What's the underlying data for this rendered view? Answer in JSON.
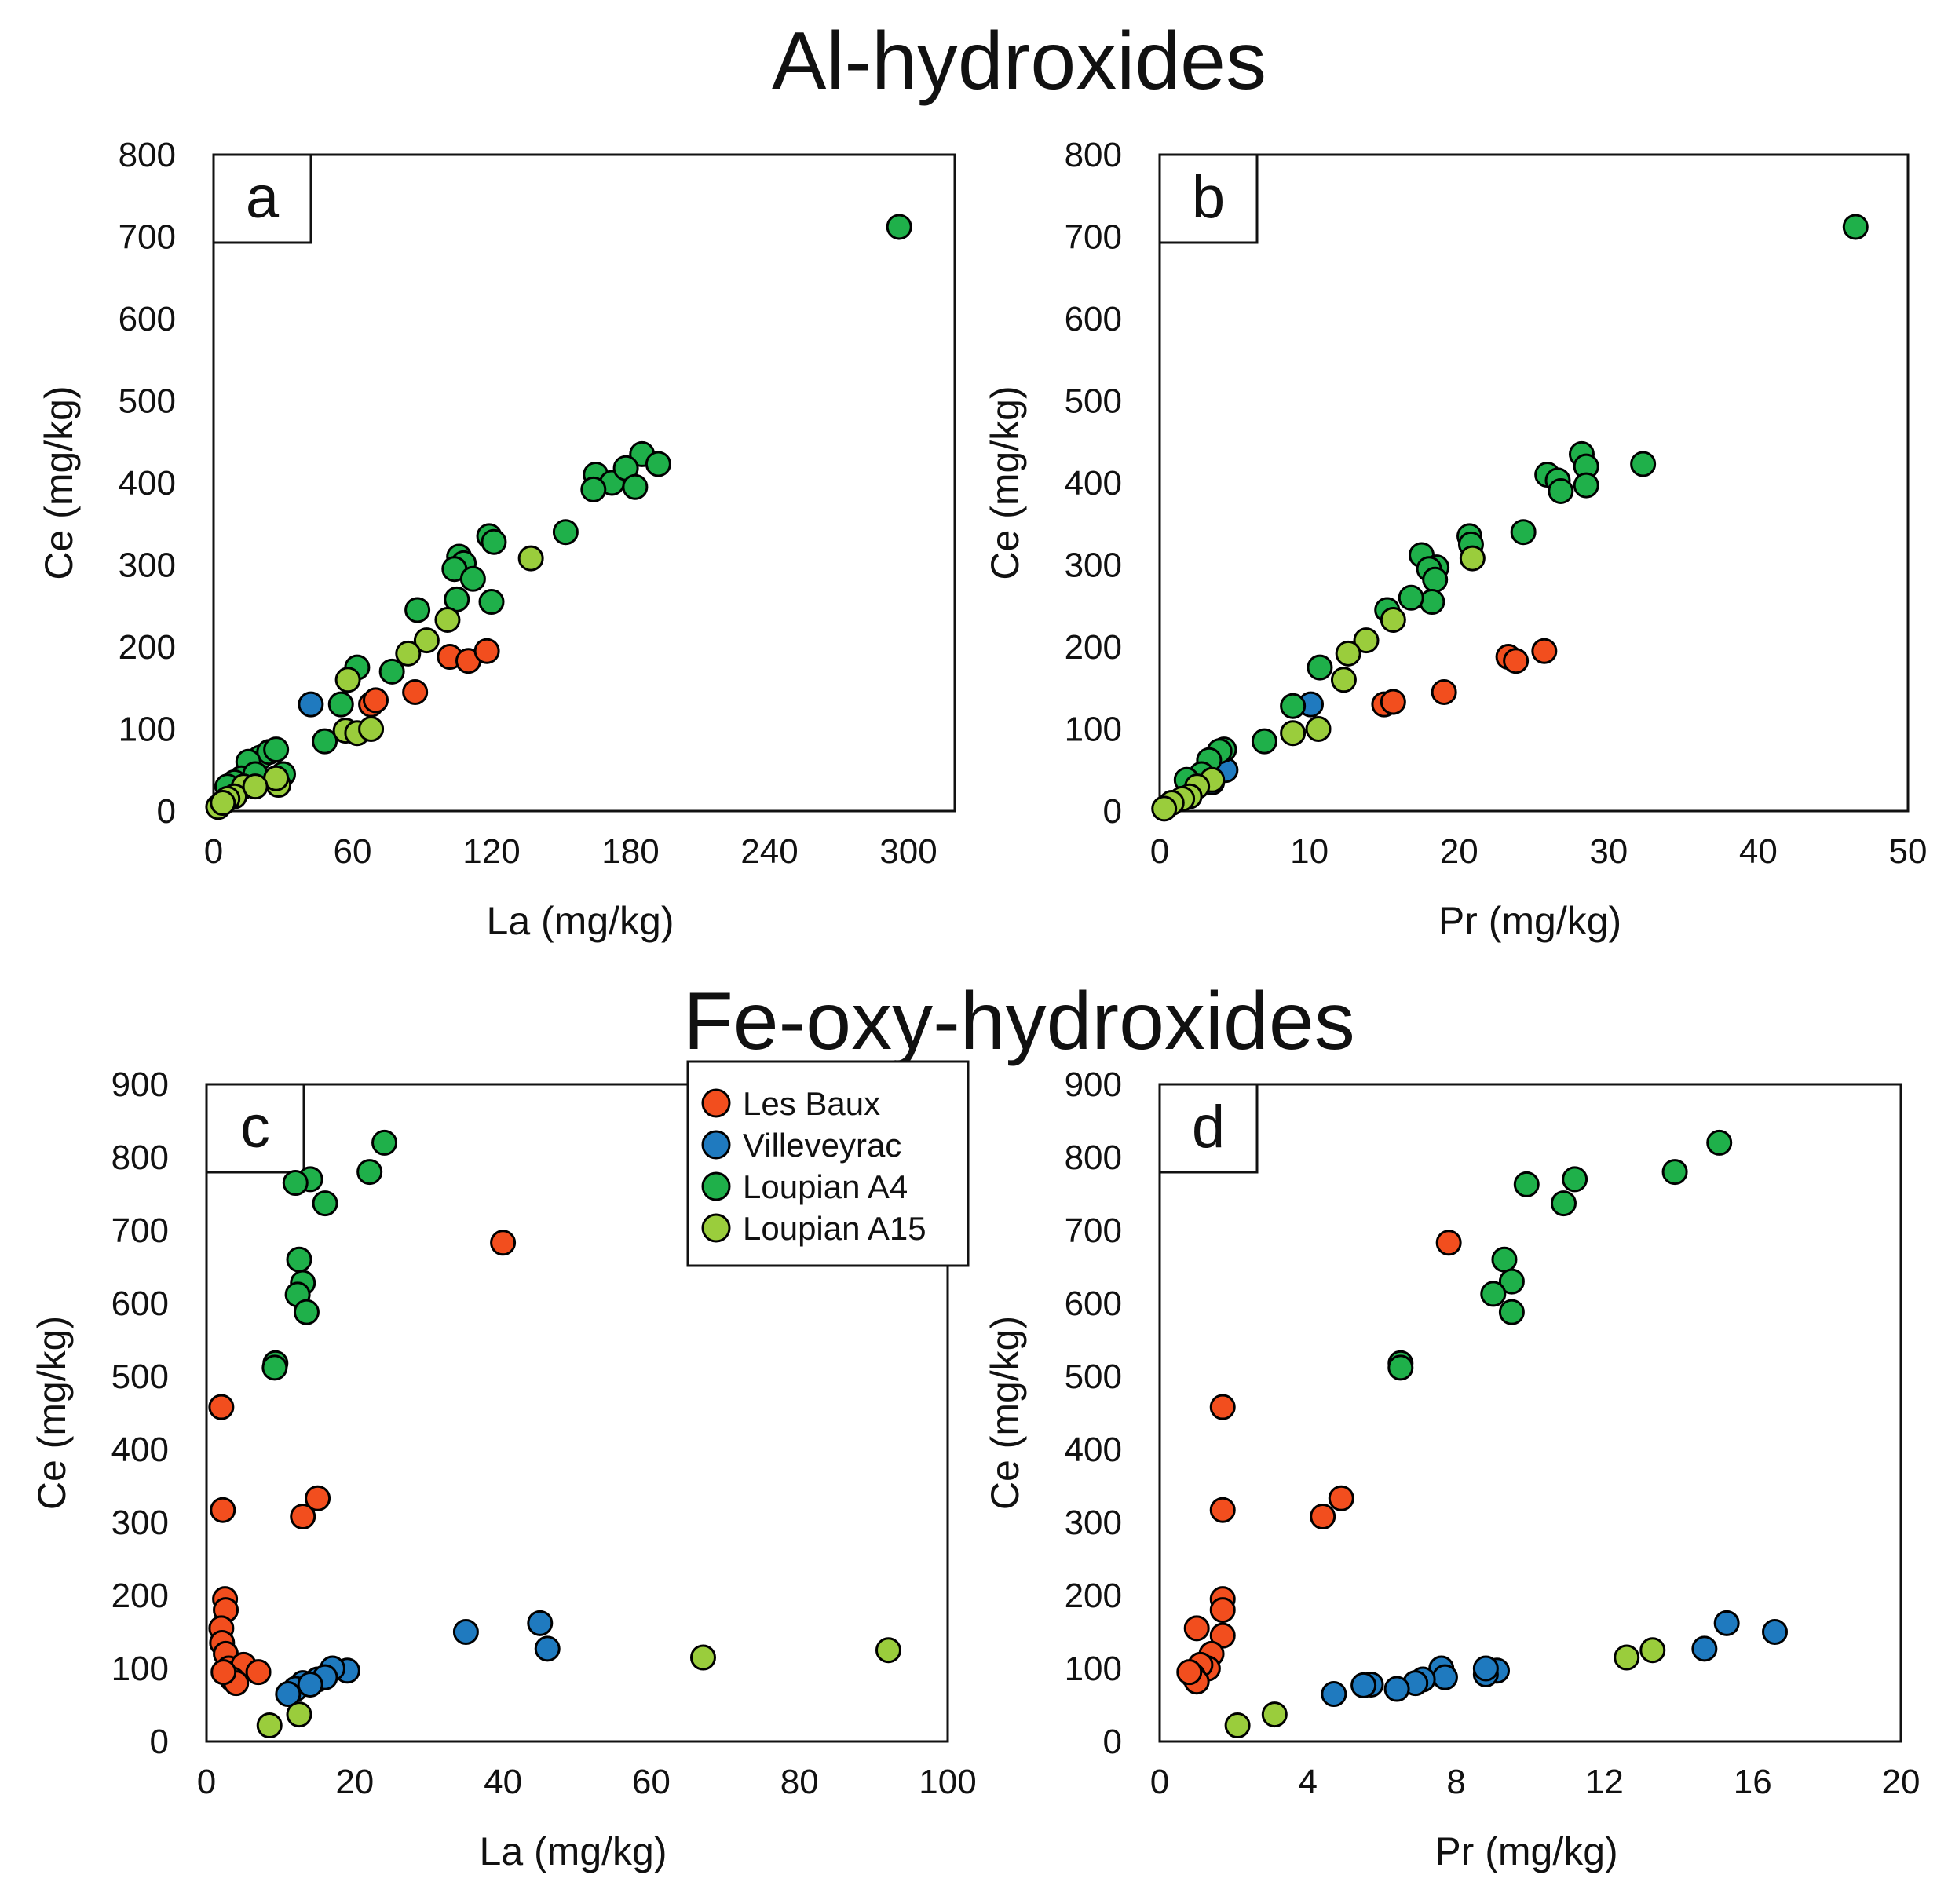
{
  "figure": {
    "section_titles": [
      "Al-hydroxides",
      "Fe-oxy-hydroxides"
    ]
  },
  "legend": {
    "entries": [
      {
        "name": "Les Baux",
        "color": "#f24e1e"
      },
      {
        "name": "Villeveyrac",
        "color": "#1f7abf"
      },
      {
        "name": "Loupian A4",
        "color": "#1fb04a"
      },
      {
        "name": "Loupian A15",
        "color": "#9acd3c"
      }
    ]
  },
  "chart_data": [
    {
      "type": "scatter",
      "panel": "a",
      "section": "Al-hydroxides",
      "xlabel": "La (mg/kg)",
      "ylabel": "Ce (mg/kg)",
      "xlim": [
        0,
        320
      ],
      "ylim": [
        0,
        800
      ],
      "xticks": [
        0,
        60,
        120,
        180,
        240,
        300
      ],
      "yticks": [
        0,
        100,
        200,
        300,
        400,
        500,
        600,
        700,
        800
      ],
      "series": [
        {
          "name": "Les Baux",
          "points": [
            [
              68,
              130
            ],
            [
              70,
              135
            ],
            [
              87,
              145
            ],
            [
              102,
              188
            ],
            [
              110,
              183
            ],
            [
              118,
              195
            ]
          ]
        },
        {
          "name": "Villeveyrac",
          "points": [
            [
              42,
              130
            ],
            [
              12,
              35
            ],
            [
              15,
              40
            ]
          ]
        },
        {
          "name": "Loupian A4",
          "points": [
            [
              296,
              712
            ],
            [
              185,
              435
            ],
            [
              192,
              423
            ],
            [
              165,
              410
            ],
            [
              172,
              400
            ],
            [
              178,
              418
            ],
            [
              182,
              395
            ],
            [
              164,
              392
            ],
            [
              152,
              340
            ],
            [
              119,
              335
            ],
            [
              121,
              328
            ],
            [
              106,
              310
            ],
            [
              108,
              302
            ],
            [
              104,
              295
            ],
            [
              112,
              283
            ],
            [
              105,
              258
            ],
            [
              120,
              255
            ],
            [
              88,
              245
            ],
            [
              62,
              175
            ],
            [
              55,
              130
            ],
            [
              48,
              85
            ],
            [
              77,
              170
            ],
            [
              20,
              65
            ],
            [
              24,
              72
            ],
            [
              27,
              75
            ],
            [
              15,
              60
            ],
            [
              12,
              40
            ],
            [
              9,
              35
            ],
            [
              18,
              45
            ],
            [
              6,
              30
            ],
            [
              30,
              45
            ]
          ]
        },
        {
          "name": "Loupian A15",
          "points": [
            [
              137,
              308
            ],
            [
              101,
              233
            ],
            [
              92,
              208
            ],
            [
              84,
              192
            ],
            [
              58,
              160
            ],
            [
              57,
              98
            ],
            [
              62,
              95
            ],
            [
              68,
              100
            ],
            [
              28,
              32
            ],
            [
              27,
              40
            ],
            [
              13,
              30
            ],
            [
              9,
              18
            ],
            [
              6,
              15
            ],
            [
              2,
              5
            ],
            [
              18,
              30
            ],
            [
              4,
              10
            ]
          ]
        }
      ]
    },
    {
      "type": "scatter",
      "panel": "b",
      "section": "Al-hydroxides",
      "xlabel": "Pr (mg/kg)",
      "ylabel": "Ce (mg/kg)",
      "xlim": [
        0,
        50
      ],
      "ylim": [
        0,
        800
      ],
      "xticks": [
        0,
        10,
        20,
        30,
        40,
        50
      ],
      "yticks": [
        0,
        100,
        200,
        300,
        400,
        500,
        600,
        700,
        800
      ],
      "series": [
        {
          "name": "Les Baux",
          "points": [
            [
              15.0,
              130
            ],
            [
              15.6,
              133
            ],
            [
              19.0,
              145
            ],
            [
              23.3,
              188
            ],
            [
              23.8,
              183
            ],
            [
              25.7,
              195
            ]
          ]
        },
        {
          "name": "Villeveyrac",
          "points": [
            [
              10.1,
              130
            ],
            [
              4.4,
              50
            ],
            [
              3.5,
              35
            ]
          ]
        },
        {
          "name": "Loupian A4",
          "points": [
            [
              46.5,
              712
            ],
            [
              28.2,
              435
            ],
            [
              28.5,
              420
            ],
            [
              32.3,
              423
            ],
            [
              25.9,
              410
            ],
            [
              26.6,
              403
            ],
            [
              26.8,
              390
            ],
            [
              28.5,
              397
            ],
            [
              24.3,
              340
            ],
            [
              20.7,
              335
            ],
            [
              20.8,
              325
            ],
            [
              17.5,
              312
            ],
            [
              18.5,
              297
            ],
            [
              18.0,
              295
            ],
            [
              18.4,
              282
            ],
            [
              18.2,
              255
            ],
            [
              16.8,
              260
            ],
            [
              15.2,
              245
            ],
            [
              10.7,
              175
            ],
            [
              8.9,
              128
            ],
            [
              7.0,
              85
            ],
            [
              4.3,
              75
            ],
            [
              4.0,
              73
            ],
            [
              3.3,
              62
            ],
            [
              2.8,
              45
            ],
            [
              1.8,
              38
            ]
          ]
        },
        {
          "name": "Loupian A15",
          "points": [
            [
              20.9,
              308
            ],
            [
              15.6,
              233
            ],
            [
              13.8,
              208
            ],
            [
              12.6,
              192
            ],
            [
              12.3,
              160
            ],
            [
              10.6,
              100
            ],
            [
              8.9,
              95
            ],
            [
              3.5,
              38
            ],
            [
              2.5,
              30
            ],
            [
              2.0,
              18
            ],
            [
              1.5,
              15
            ],
            [
              0.8,
              10
            ],
            [
              0.3,
              3
            ]
          ]
        }
      ]
    },
    {
      "type": "scatter",
      "panel": "c",
      "section": "Fe-oxy-hydroxides",
      "xlabel": "La (mg/kg)",
      "ylabel": "Ce (mg/kg)",
      "xlim": [
        0,
        100
      ],
      "ylim": [
        0,
        900
      ],
      "xticks": [
        0,
        20,
        40,
        60,
        80,
        100
      ],
      "yticks": [
        0,
        100,
        200,
        300,
        400,
        500,
        600,
        700,
        800,
        900
      ],
      "series": [
        {
          "name": "Les Baux",
          "points": [
            [
              40,
              683
            ],
            [
              2,
              458
            ],
            [
              2.2,
              317
            ],
            [
              13,
              308
            ],
            [
              15,
              333
            ],
            [
              2.5,
              195
            ],
            [
              2.6,
              180
            ],
            [
              2,
              155
            ],
            [
              2.1,
              135
            ],
            [
              2.6,
              120
            ],
            [
              3,
              100
            ],
            [
              5,
              105
            ],
            [
              7,
              95
            ],
            [
              3.5,
              85
            ],
            [
              4,
              80
            ],
            [
              2.3,
              95
            ]
          ]
        },
        {
          "name": "Villeveyrac",
          "points": [
            [
              45,
              162
            ],
            [
              35,
              150
            ],
            [
              46,
              127
            ],
            [
              19,
              97
            ],
            [
              17,
              100
            ],
            [
              15,
              85
            ],
            [
              13,
              80
            ],
            [
              12,
              72
            ],
            [
              11,
              65
            ],
            [
              16,
              88
            ],
            [
              14,
              78
            ]
          ]
        },
        {
          "name": "Loupian A4",
          "points": [
            [
              24,
              820
            ],
            [
              22,
              780
            ],
            [
              14,
              770
            ],
            [
              12,
              765
            ],
            [
              16,
              737
            ],
            [
              12.5,
              660
            ],
            [
              13,
              628
            ],
            [
              12.3,
              612
            ],
            [
              13.5,
              588
            ],
            [
              9.3,
              518
            ],
            [
              9.2,
              512
            ]
          ]
        },
        {
          "name": "Loupian A15",
          "points": [
            [
              92,
              125
            ],
            [
              67,
              115
            ],
            [
              12.5,
              37
            ],
            [
              8.5,
              22
            ]
          ]
        }
      ]
    },
    {
      "type": "scatter",
      "panel": "d",
      "section": "Fe-oxy-hydroxides",
      "xlabel": "Pr (mg/kg)",
      "ylabel": "Ce (mg/kg)",
      "xlim": [
        0,
        20
      ],
      "ylim": [
        0,
        900
      ],
      "xticks": [
        0,
        4,
        8,
        12,
        16,
        20
      ],
      "yticks": [
        0,
        100,
        200,
        300,
        400,
        500,
        600,
        700,
        800,
        900
      ],
      "series": [
        {
          "name": "Les Baux",
          "points": [
            [
              7.8,
              683
            ],
            [
              1.7,
              458
            ],
            [
              1.7,
              317
            ],
            [
              4.4,
              308
            ],
            [
              4.9,
              333
            ],
            [
              1.7,
              195
            ],
            [
              1.7,
              180
            ],
            [
              1.0,
              155
            ],
            [
              1.7,
              145
            ],
            [
              1.4,
              120
            ],
            [
              1.3,
              100
            ],
            [
              1.1,
              105
            ],
            [
              0.9,
              90
            ],
            [
              1.0,
              82
            ],
            [
              0.8,
              95
            ]
          ]
        },
        {
          "name": "Villeveyrac",
          "points": [
            [
              15.3,
              162
            ],
            [
              16.6,
              150
            ],
            [
              14.7,
              127
            ],
            [
              7.6,
              100
            ],
            [
              9.1,
              97
            ],
            [
              8.8,
              92
            ],
            [
              7.7,
              88
            ],
            [
              7.1,
              85
            ],
            [
              6.9,
              80
            ],
            [
              6.4,
              72
            ],
            [
              5.7,
              78
            ],
            [
              5.5,
              77
            ],
            [
              4.7,
              65
            ],
            [
              8.8,
              100
            ]
          ]
        },
        {
          "name": "Loupian A4",
          "points": [
            [
              15.1,
              820
            ],
            [
              13.9,
              780
            ],
            [
              11.2,
              770
            ],
            [
              10.9,
              737
            ],
            [
              9.9,
              763
            ],
            [
              9.3,
              660
            ],
            [
              9.5,
              630
            ],
            [
              9.0,
              613
            ],
            [
              9.5,
              588
            ],
            [
              6.5,
              518
            ],
            [
              6.5,
              512
            ]
          ]
        },
        {
          "name": "Loupian A15",
          "points": [
            [
              13.3,
              125
            ],
            [
              12.6,
              115
            ],
            [
              3.1,
              37
            ],
            [
              2.1,
              22
            ]
          ]
        }
      ]
    }
  ]
}
